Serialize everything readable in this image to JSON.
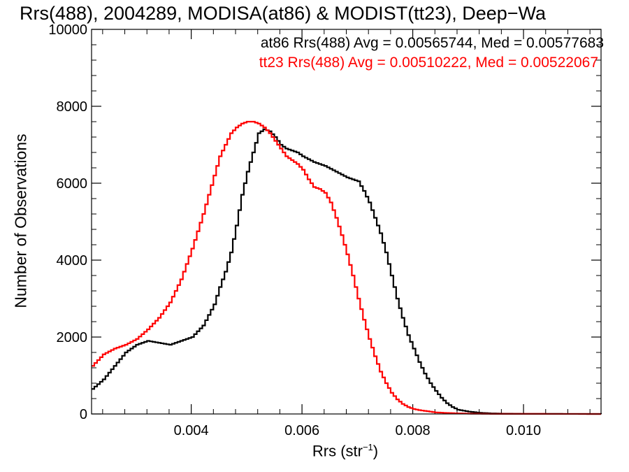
{
  "chart_data": {
    "type": "line",
    "title": "Rrs(488), 2004289, MODISA(at86) & MODIST(tt23), Deep−Wa",
    "xlabel": "Rrs (str",
    "xlabel_sup": "−1",
    "xlabel_close": ")",
    "ylabel": "Number of Observations",
    "xlim": [
      0.0022,
      0.0114
    ],
    "ylim": [
      0,
      10000
    ],
    "x_ticks": [
      0.004,
      0.006,
      0.008,
      0.01
    ],
    "x_tick_labels": [
      "0.004",
      "0.006",
      "0.008",
      "0.010"
    ],
    "y_ticks": [
      0,
      2000,
      4000,
      6000,
      8000,
      10000
    ],
    "y_tick_labels": [
      "0",
      "2000",
      "4000",
      "6000",
      "8000",
      "10000"
    ],
    "step_style": true,
    "grid": false,
    "legend_placement": "top-right",
    "series": [
      {
        "name": "at86 Rrs(488) Avg = 0.00565744, Med = 0.00577683",
        "color": "#000000",
        "x": [
          0.0022,
          0.0024,
          0.0026,
          0.0028,
          0.003,
          0.0032,
          0.0034,
          0.0036,
          0.0038,
          0.004,
          0.0042,
          0.0044,
          0.0045,
          0.0046,
          0.0047,
          0.0048,
          0.0049,
          0.005,
          0.0051,
          0.0052,
          0.0053,
          0.0054,
          0.0055,
          0.0056,
          0.0057,
          0.0058,
          0.0059,
          0.006,
          0.0062,
          0.0064,
          0.0066,
          0.0068,
          0.007,
          0.0071,
          0.0072,
          0.0073,
          0.0074,
          0.0075,
          0.0076,
          0.0077,
          0.0078,
          0.0079,
          0.008,
          0.0081,
          0.0082,
          0.0083,
          0.0084,
          0.0085,
          0.0086,
          0.0087,
          0.0088,
          0.009,
          0.0092,
          0.0094,
          0.0096,
          0.01,
          0.0114
        ],
        "y": [
          650,
          900,
          1250,
          1600,
          1800,
          1900,
          1850,
          1800,
          1900,
          2000,
          2300,
          2850,
          3300,
          3700,
          4200,
          4900,
          5700,
          6300,
          6800,
          7300,
          7400,
          7350,
          7200,
          7000,
          6900,
          6850,
          6800,
          6700,
          6550,
          6450,
          6300,
          6150,
          6050,
          5800,
          5500,
          5100,
          4700,
          4200,
          3600,
          3000,
          2500,
          2050,
          1700,
          1350,
          1050,
          800,
          600,
          420,
          280,
          180,
          110,
          60,
          30,
          15,
          8,
          3,
          0
        ]
      },
      {
        "name": "tt23 Rrs(488) Avg = 0.00510222, Med = 0.00522067",
        "color": "#ff0000",
        "x": [
          0.0022,
          0.0024,
          0.0026,
          0.0028,
          0.003,
          0.0032,
          0.0034,
          0.0036,
          0.0038,
          0.004,
          0.0042,
          0.0043,
          0.0044,
          0.0045,
          0.0046,
          0.0047,
          0.0048,
          0.0049,
          0.005,
          0.0051,
          0.0052,
          0.0053,
          0.0054,
          0.0055,
          0.0056,
          0.0057,
          0.0058,
          0.0059,
          0.006,
          0.0061,
          0.0062,
          0.0063,
          0.0064,
          0.0065,
          0.0066,
          0.0067,
          0.0068,
          0.0069,
          0.007,
          0.0071,
          0.0072,
          0.0073,
          0.0074,
          0.0075,
          0.0076,
          0.0077,
          0.0078,
          0.0079,
          0.008,
          0.0081,
          0.0082,
          0.0083,
          0.0084,
          0.0086,
          0.0088,
          0.009,
          0.0094,
          0.0114
        ],
        "y": [
          1250,
          1550,
          1700,
          1800,
          1950,
          2200,
          2500,
          2900,
          3500,
          4300,
          5200,
          5700,
          6200,
          6700,
          7000,
          7300,
          7450,
          7550,
          7600,
          7600,
          7550,
          7450,
          7300,
          7100,
          6900,
          6700,
          6600,
          6500,
          6350,
          6100,
          5900,
          5850,
          5750,
          5500,
          5100,
          4650,
          4150,
          3600,
          3000,
          2450,
          1950,
          1500,
          1100,
          800,
          550,
          380,
          260,
          180,
          130,
          100,
          80,
          60,
          40,
          25,
          15,
          8,
          3,
          0
        ]
      }
    ]
  }
}
